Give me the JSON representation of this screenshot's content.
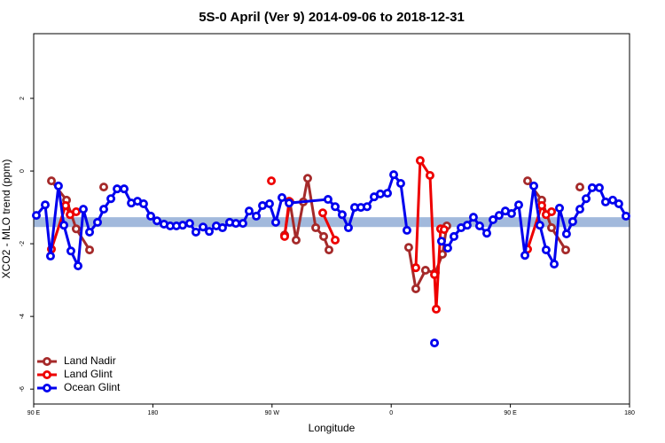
{
  "chart_data": {
    "type": "line",
    "title": "5S-0 April (Ver 9)   2014-09-06 to 2018-12-31",
    "x_label": "Longitude",
    "y_label": "XCO2 - MLO trend (ppm)",
    "xlim": [
      90,
      540
    ],
    "ylim": [
      -6.41,
      3.78
    ],
    "xticks": [
      {
        "value": 90,
        "label": "90 E"
      },
      180,
      {
        "value": 270,
        "label": "90 W"
      },
      0,
      {
        "value": 450,
        "label": "90 E"
      },
      180
    ],
    "yticks": [
      2,
      0,
      -2,
      -4,
      -6
    ],
    "band": {
      "values": [
        -1.54,
        -1.27
      ],
      "color": "#a2b9dc"
    },
    "legend": "bottom-left",
    "series": [
      {
        "name": "Land Nadir",
        "color": "#a52a2a",
        "x": [
          103.4,
          114.8,
          122.1,
          132.2,
          null,
          142.9,
          null,
          279.5,
          283.5,
          288.2,
          293.6,
          296.9,
          303.0,
          309.0,
          313.0,
          null,
          373.2,
          378.6,
          385.9,
          393.3,
          398.7,
          402.0,
          null,
          463.0,
          473.7,
          481.1,
          491.8,
          null,
          502.5
        ],
        "values": [
          -0.27,
          -0.8,
          -1.59,
          -2.17,
          null,
          -0.44,
          null,
          -1.76,
          -0.85,
          -1.9,
          -0.85,
          -0.2,
          -1.56,
          -1.8,
          -2.17,
          null,
          -2.1,
          -3.24,
          -2.73,
          -2.8,
          -2.29,
          -1.51,
          null,
          -0.27,
          -0.8,
          -1.56,
          -2.17,
          null,
          -0.44
        ]
      },
      {
        "name": "Land Glint",
        "color": "#ee0000",
        "x": [
          103.4,
          114.1,
          117.5,
          122.1,
          null,
          269.5,
          null,
          279.5,
          282.9,
          null,
          308.3,
          317.7,
          null,
          378.6,
          381.9,
          389.3,
          392.7,
          394.0,
          397.3,
          400.0,
          null,
          463.0,
          473.7,
          477.0,
          481.1
        ],
        "values": [
          -2.15,
          -0.95,
          -1.2,
          -1.12,
          null,
          -0.27,
          null,
          -1.8,
          -0.83,
          null,
          -1.15,
          -1.9,
          null,
          -2.66,
          0.29,
          -0.12,
          -2.85,
          -3.8,
          -1.59,
          -1.61,
          null,
          -2.15,
          -0.95,
          -1.2,
          -1.12
        ]
      },
      {
        "name": "Ocean Glint",
        "color": "#0000ee",
        "x": [
          92.0,
          98.7,
          102.7,
          108.7,
          112.8,
          118.1,
          123.5,
          127.5,
          132.2,
          138.2,
          142.9,
          148.3,
          153.0,
          158.3,
          163.7,
          168.4,
          173.0,
          178.4,
          183.1,
          188.4,
          193.1,
          197.8,
          202.5,
          207.8,
          212.5,
          217.9,
          222.6,
          227.9,
          232.6,
          238.0,
          242.7,
          248.0,
          252.7,
          258.1,
          262.8,
          268.1,
          272.8,
          277.5,
          282.9,
          312.3,
          317.7,
          323.0,
          327.7,
          332.4,
          337.1,
          341.8,
          347.1,
          351.8,
          357.2,
          361.9,
          367.2,
          371.9,
          null,
          392.7,
          null,
          398.0,
          402.7,
          407.4,
          412.8,
          417.4,
          422.1,
          426.8,
          432.2,
          436.9,
          441.5,
          446.2,
          450.9,
          456.3,
          461.0,
          467.7,
          472.3,
          477.0,
          483.1,
          487.1,
          492.4,
          497.1,
          502.5,
          507.2,
          511.8,
          517.2,
          521.9,
          527.3,
          531.9,
          537.3
        ],
        "values": [
          -1.22,
          -0.93,
          -2.34,
          -0.41,
          -1.49,
          -2.2,
          -2.61,
          -1.05,
          -1.68,
          -1.41,
          -1.05,
          -0.76,
          -0.49,
          -0.49,
          -0.88,
          -0.83,
          -0.9,
          -1.24,
          -1.37,
          -1.46,
          -1.51,
          -1.51,
          -1.49,
          -1.44,
          -1.68,
          -1.54,
          -1.66,
          -1.51,
          -1.56,
          -1.41,
          -1.44,
          -1.44,
          -1.1,
          -1.24,
          -0.95,
          -0.9,
          -1.41,
          -0.73,
          -0.88,
          -0.78,
          -0.98,
          -1.2,
          -1.56,
          -1.0,
          -1.0,
          -0.98,
          -0.71,
          -0.63,
          -0.61,
          -0.1,
          -0.34,
          -1.63,
          null,
          -4.73,
          null,
          -1.93,
          -2.12,
          -1.8,
          -1.56,
          -1.49,
          -1.27,
          -1.51,
          -1.71,
          -1.34,
          -1.22,
          -1.1,
          -1.17,
          -0.93,
          -2.32,
          -0.41,
          -1.49,
          -2.17,
          -2.56,
          -1.02,
          -1.73,
          -1.39,
          -1.05,
          -0.76,
          -0.46,
          -0.46,
          -0.85,
          -0.8,
          -0.9,
          -1.24
        ]
      }
    ]
  }
}
